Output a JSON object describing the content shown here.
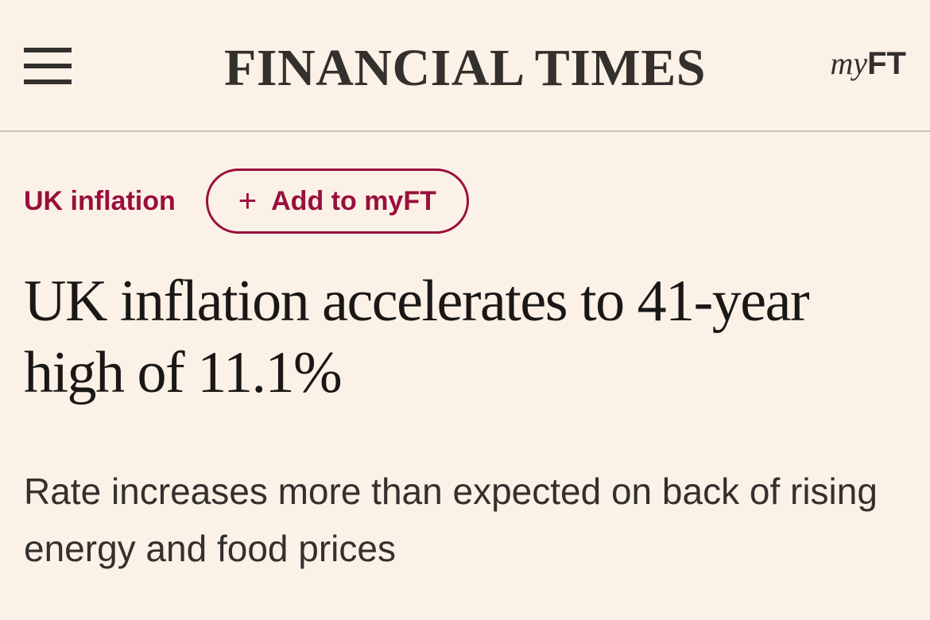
{
  "header": {
    "masthead": "FINANCIAL TIMES",
    "myft_logo": {
      "my": "my",
      "ft": "FT"
    },
    "menu_icon": "hamburger-menu-icon"
  },
  "article": {
    "topic": "UK inflation",
    "follow_button": {
      "icon": "plus-icon",
      "plus": "+",
      "label": "Add to myFT"
    },
    "headline": "UK inflation accelerates to 41-year high of 11.1%",
    "standfirst": "Rate increases more than expected on back of rising energy and food prices"
  },
  "colors": {
    "background": "#fcf1e6",
    "accent": "#990f3d",
    "text": "#1a1817"
  }
}
